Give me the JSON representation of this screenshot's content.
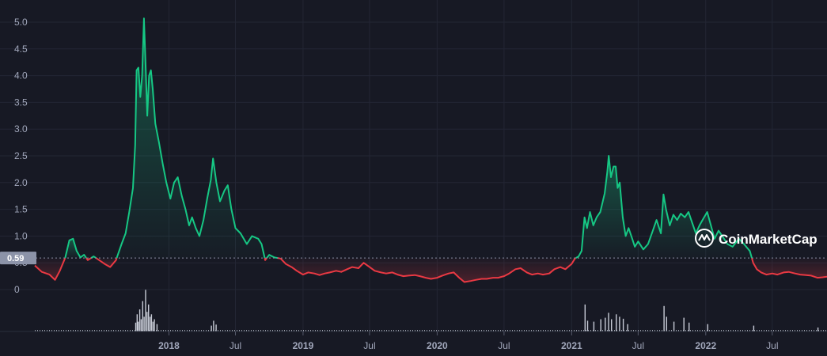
{
  "watermark": {
    "text": "CoinMarketCap",
    "icon": "coinmarketcap-logo-icon"
  },
  "colors": {
    "background": "#171924",
    "up": "#16c784",
    "down": "#ea3943",
    "grid": "#232634",
    "tick": "#a1a7bb",
    "volume": "#c7cbd6"
  },
  "chart_data": {
    "type": "line",
    "title": "",
    "xlabel": "",
    "ylabel": "",
    "baseline_value": 0.59,
    "baseline_label": "0.59",
    "ylim": [
      0,
      5.2
    ],
    "xlim": [
      "2017-01-01",
      "2022-11-27"
    ],
    "y_ticks": [
      0,
      0.5,
      1.0,
      1.5,
      2.0,
      2.5,
      3.0,
      3.5,
      4.0,
      4.5,
      5.0
    ],
    "y_tick_labels": [
      "0",
      "0.5",
      "1.0",
      "1.5",
      "2.0",
      "2.5",
      "3.0",
      "3.5",
      "4.0",
      "4.5",
      "5.0"
    ],
    "x_ticks": [
      {
        "date": "2018-01-01",
        "label": "2018",
        "bold": true
      },
      {
        "date": "2018-07-01",
        "label": "Jul",
        "bold": false
      },
      {
        "date": "2019-01-01",
        "label": "2019",
        "bold": true
      },
      {
        "date": "2019-07-01",
        "label": "Jul",
        "bold": false
      },
      {
        "date": "2020-01-01",
        "label": "2020",
        "bold": true
      },
      {
        "date": "2020-07-01",
        "label": "Jul",
        "bold": false
      },
      {
        "date": "2021-01-01",
        "label": "2021",
        "bold": true
      },
      {
        "date": "2021-07-01",
        "label": "Jul",
        "bold": false
      },
      {
        "date": "2022-01-01",
        "label": "2022",
        "bold": true
      },
      {
        "date": "2022-07-01",
        "label": "Jul",
        "bold": false
      }
    ],
    "grid": true,
    "series": [
      {
        "points": [
          [
            "2017-01-01",
            0.45
          ],
          [
            "2017-01-20",
            0.33
          ],
          [
            "2017-02-10",
            0.28
          ],
          [
            "2017-02-25",
            0.18
          ],
          [
            "2017-03-10",
            0.35
          ],
          [
            "2017-03-25",
            0.6
          ],
          [
            "2017-04-05",
            0.92
          ],
          [
            "2017-04-15",
            0.95
          ],
          [
            "2017-04-25",
            0.72
          ],
          [
            "2017-05-05",
            0.6
          ],
          [
            "2017-05-15",
            0.65
          ],
          [
            "2017-05-25",
            0.55
          ],
          [
            "2017-06-10",
            0.62
          ],
          [
            "2017-06-25",
            0.55
          ],
          [
            "2017-07-10",
            0.48
          ],
          [
            "2017-07-25",
            0.42
          ],
          [
            "2017-08-10",
            0.55
          ],
          [
            "2017-08-25",
            0.85
          ],
          [
            "2017-09-05",
            1.05
          ],
          [
            "2017-09-15",
            1.45
          ],
          [
            "2017-09-25",
            1.9
          ],
          [
            "2017-10-01",
            2.7
          ],
          [
            "2017-10-05",
            4.1
          ],
          [
            "2017-10-10",
            4.15
          ],
          [
            "2017-10-15",
            3.6
          ],
          [
            "2017-10-20",
            4.0
          ],
          [
            "2017-10-25",
            5.07
          ],
          [
            "2017-10-30",
            4.1
          ],
          [
            "2017-11-03",
            3.25
          ],
          [
            "2017-11-08",
            4.0
          ],
          [
            "2017-11-13",
            4.1
          ],
          [
            "2017-11-18",
            3.75
          ],
          [
            "2017-11-25",
            3.1
          ],
          [
            "2017-12-05",
            2.75
          ],
          [
            "2017-12-15",
            2.35
          ],
          [
            "2017-12-25",
            2.0
          ],
          [
            "2018-01-05",
            1.7
          ],
          [
            "2018-01-15",
            2.0
          ],
          [
            "2018-01-25",
            2.1
          ],
          [
            "2018-02-05",
            1.75
          ],
          [
            "2018-02-15",
            1.5
          ],
          [
            "2018-02-25",
            1.2
          ],
          [
            "2018-03-05",
            1.35
          ],
          [
            "2018-03-15",
            1.15
          ],
          [
            "2018-03-25",
            1.0
          ],
          [
            "2018-04-05",
            1.3
          ],
          [
            "2018-04-15",
            1.7
          ],
          [
            "2018-04-25",
            2.05
          ],
          [
            "2018-05-01",
            2.45
          ],
          [
            "2018-05-10",
            2.0
          ],
          [
            "2018-05-20",
            1.65
          ],
          [
            "2018-06-01",
            1.85
          ],
          [
            "2018-06-10",
            1.95
          ],
          [
            "2018-06-20",
            1.5
          ],
          [
            "2018-07-01",
            1.15
          ],
          [
            "2018-07-15",
            1.05
          ],
          [
            "2018-08-01",
            0.85
          ],
          [
            "2018-08-15",
            1.0
          ],
          [
            "2018-09-01",
            0.95
          ],
          [
            "2018-09-10",
            0.85
          ],
          [
            "2018-09-20",
            0.55
          ],
          [
            "2018-10-01",
            0.65
          ],
          [
            "2018-10-15",
            0.6
          ],
          [
            "2018-11-01",
            0.58
          ],
          [
            "2018-11-15",
            0.48
          ],
          [
            "2018-12-01",
            0.42
          ],
          [
            "2018-12-15",
            0.35
          ],
          [
            "2019-01-01",
            0.28
          ],
          [
            "2019-01-15",
            0.32
          ],
          [
            "2019-02-01",
            0.3
          ],
          [
            "2019-02-15",
            0.27
          ],
          [
            "2019-03-01",
            0.3
          ],
          [
            "2019-03-15",
            0.32
          ],
          [
            "2019-04-01",
            0.35
          ],
          [
            "2019-04-15",
            0.33
          ],
          [
            "2019-05-01",
            0.38
          ],
          [
            "2019-05-15",
            0.42
          ],
          [
            "2019-06-01",
            0.4
          ],
          [
            "2019-06-15",
            0.5
          ],
          [
            "2019-07-01",
            0.42
          ],
          [
            "2019-07-15",
            0.35
          ],
          [
            "2019-08-01",
            0.32
          ],
          [
            "2019-08-15",
            0.3
          ],
          [
            "2019-09-01",
            0.32
          ],
          [
            "2019-09-15",
            0.28
          ],
          [
            "2019-10-01",
            0.25
          ],
          [
            "2019-10-15",
            0.26
          ],
          [
            "2019-11-01",
            0.27
          ],
          [
            "2019-11-15",
            0.25
          ],
          [
            "2019-12-01",
            0.22
          ],
          [
            "2019-12-15",
            0.2
          ],
          [
            "2020-01-01",
            0.22
          ],
          [
            "2020-01-15",
            0.26
          ],
          [
            "2020-02-01",
            0.3
          ],
          [
            "2020-02-15",
            0.32
          ],
          [
            "2020-03-01",
            0.22
          ],
          [
            "2020-03-15",
            0.14
          ],
          [
            "2020-04-01",
            0.16
          ],
          [
            "2020-04-15",
            0.18
          ],
          [
            "2020-05-01",
            0.2
          ],
          [
            "2020-05-15",
            0.2
          ],
          [
            "2020-06-01",
            0.22
          ],
          [
            "2020-06-15",
            0.22
          ],
          [
            "2020-07-01",
            0.25
          ],
          [
            "2020-07-15",
            0.3
          ],
          [
            "2020-08-01",
            0.38
          ],
          [
            "2020-08-15",
            0.4
          ],
          [
            "2020-09-01",
            0.32
          ],
          [
            "2020-09-15",
            0.28
          ],
          [
            "2020-10-01",
            0.3
          ],
          [
            "2020-10-15",
            0.28
          ],
          [
            "2020-11-01",
            0.3
          ],
          [
            "2020-11-15",
            0.38
          ],
          [
            "2020-12-01",
            0.42
          ],
          [
            "2020-12-15",
            0.38
          ],
          [
            "2021-01-01",
            0.48
          ],
          [
            "2021-01-10",
            0.58
          ],
          [
            "2021-01-20",
            0.62
          ],
          [
            "2021-01-28",
            0.72
          ],
          [
            "2021-02-05",
            1.35
          ],
          [
            "2021-02-12",
            1.15
          ],
          [
            "2021-02-20",
            1.45
          ],
          [
            "2021-03-01",
            1.2
          ],
          [
            "2021-03-10",
            1.35
          ],
          [
            "2021-03-20",
            1.45
          ],
          [
            "2021-04-01",
            1.8
          ],
          [
            "2021-04-08",
            2.2
          ],
          [
            "2021-04-12",
            2.5
          ],
          [
            "2021-04-18",
            2.1
          ],
          [
            "2021-04-25",
            2.3
          ],
          [
            "2021-05-01",
            2.3
          ],
          [
            "2021-05-06",
            1.9
          ],
          [
            "2021-05-12",
            2.0
          ],
          [
            "2021-05-20",
            1.35
          ],
          [
            "2021-05-28",
            1.0
          ],
          [
            "2021-06-05",
            1.15
          ],
          [
            "2021-06-15",
            0.95
          ],
          [
            "2021-06-22",
            0.8
          ],
          [
            "2021-07-01",
            0.9
          ],
          [
            "2021-07-15",
            0.75
          ],
          [
            "2021-07-28",
            0.85
          ],
          [
            "2021-08-10",
            1.1
          ],
          [
            "2021-08-20",
            1.3
          ],
          [
            "2021-09-01",
            1.05
          ],
          [
            "2021-09-08",
            1.78
          ],
          [
            "2021-09-15",
            1.5
          ],
          [
            "2021-09-25",
            1.2
          ],
          [
            "2021-10-05",
            1.4
          ],
          [
            "2021-10-15",
            1.3
          ],
          [
            "2021-10-25",
            1.42
          ],
          [
            "2021-11-05",
            1.35
          ],
          [
            "2021-11-15",
            1.45
          ],
          [
            "2021-11-25",
            1.25
          ],
          [
            "2021-12-05",
            1.05
          ],
          [
            "2021-12-15",
            1.2
          ],
          [
            "2021-12-25",
            1.32
          ],
          [
            "2022-01-05",
            1.45
          ],
          [
            "2022-01-15",
            1.2
          ],
          [
            "2022-01-25",
            0.95
          ],
          [
            "2022-02-05",
            1.1
          ],
          [
            "2022-02-15",
            1.0
          ],
          [
            "2022-03-01",
            0.85
          ],
          [
            "2022-03-15",
            0.8
          ],
          [
            "2022-04-01",
            0.95
          ],
          [
            "2022-04-15",
            0.85
          ],
          [
            "2022-05-01",
            0.72
          ],
          [
            "2022-05-10",
            0.5
          ],
          [
            "2022-05-20",
            0.38
          ],
          [
            "2022-06-01",
            0.32
          ],
          [
            "2022-06-15",
            0.28
          ],
          [
            "2022-07-01",
            0.3
          ],
          [
            "2022-07-15",
            0.28
          ],
          [
            "2022-08-01",
            0.32
          ],
          [
            "2022-08-15",
            0.33
          ],
          [
            "2022-09-01",
            0.3
          ],
          [
            "2022-09-15",
            0.28
          ],
          [
            "2022-10-01",
            0.27
          ],
          [
            "2022-10-15",
            0.26
          ],
          [
            "2022-11-01",
            0.22
          ],
          [
            "2022-11-15",
            0.23
          ],
          [
            "2022-11-27",
            0.24
          ]
        ]
      }
    ],
    "volume": [
      [
        "2017-10-01",
        0.18
      ],
      [
        "2017-10-05",
        0.35
      ],
      [
        "2017-10-08",
        0.2
      ],
      [
        "2017-10-12",
        0.45
      ],
      [
        "2017-10-16",
        0.25
      ],
      [
        "2017-10-20",
        0.62
      ],
      [
        "2017-10-24",
        0.3
      ],
      [
        "2017-10-28",
        0.85
      ],
      [
        "2017-11-01",
        0.4
      ],
      [
        "2017-11-05",
        0.55
      ],
      [
        "2017-11-09",
        0.3
      ],
      [
        "2017-11-13",
        0.35
      ],
      [
        "2017-11-17",
        0.2
      ],
      [
        "2017-11-21",
        0.25
      ],
      [
        "2017-11-28",
        0.15
      ],
      [
        "2018-04-25",
        0.12
      ],
      [
        "2018-05-01",
        0.22
      ],
      [
        "2018-05-08",
        0.14
      ],
      [
        "2021-02-05",
        0.55
      ],
      [
        "2021-02-12",
        0.22
      ],
      [
        "2021-03-01",
        0.2
      ],
      [
        "2021-03-20",
        0.25
      ],
      [
        "2021-04-01",
        0.28
      ],
      [
        "2021-04-10",
        0.38
      ],
      [
        "2021-04-18",
        0.25
      ],
      [
        "2021-05-01",
        0.35
      ],
      [
        "2021-05-10",
        0.3
      ],
      [
        "2021-05-20",
        0.26
      ],
      [
        "2021-06-01",
        0.15
      ],
      [
        "2021-09-08",
        0.52
      ],
      [
        "2021-09-15",
        0.3
      ],
      [
        "2021-10-05",
        0.2
      ],
      [
        "2021-11-01",
        0.28
      ],
      [
        "2021-11-15",
        0.18
      ],
      [
        "2022-01-05",
        0.15
      ],
      [
        "2022-05-10",
        0.12
      ],
      [
        "2022-11-01",
        0.08
      ]
    ]
  }
}
